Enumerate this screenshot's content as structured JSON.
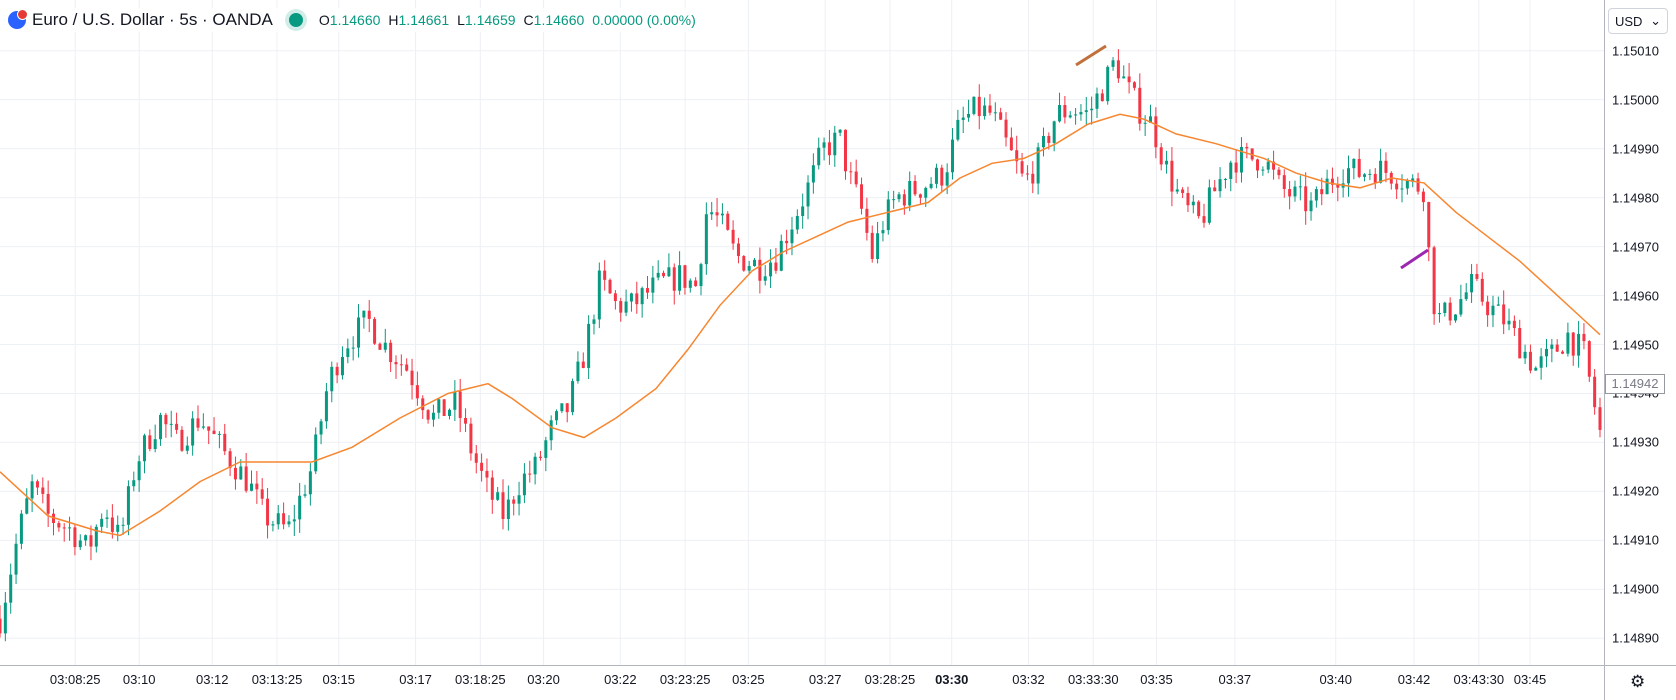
{
  "legend": {
    "symbol": "Euro / U.S. Dollar · 5s · OANDA",
    "open_label": "O",
    "open": "1.14660",
    "high_label": "H",
    "high": "1.14661",
    "low_label": "L",
    "low": "1.14659",
    "close_label": "C",
    "close": "1.14660",
    "change": "0.00000 (0.00%)"
  },
  "currency": {
    "label": "USD",
    "chevron": "⌄"
  },
  "price_tag": "1.14942",
  "settings_icon": "gear-icon",
  "colors": {
    "up": "#089981",
    "down": "#f23645",
    "ma": "#f7862f",
    "grid": "#e9ecf2",
    "annot1": "#c0703a",
    "annot2": "#9c27b0"
  },
  "chart_data": {
    "type": "candlestick",
    "symbol": "EUR/USD",
    "interval": "5s",
    "y_ticks": [
      "1.14890",
      "1.14900",
      "1.14910",
      "1.14920",
      "1.14930",
      "1.14940",
      "1.14950",
      "1.14960",
      "1.14970",
      "1.14980",
      "1.14990",
      "1.15000",
      "1.15010"
    ],
    "ylim": [
      1.14887,
      1.15013
    ],
    "x_ticks": [
      {
        "label": "03:08:25",
        "x": 0.034
      },
      {
        "label": "03:10",
        "x": 0.0765
      },
      {
        "label": "03:12",
        "x": 0.125
      },
      {
        "label": "03:13:25",
        "x": 0.168
      },
      {
        "label": "03:15",
        "x": 0.209
      },
      {
        "label": "03:17",
        "x": 0.26
      },
      {
        "label": "03:18:25",
        "x": 0.303
      },
      {
        "label": "03:20",
        "x": 0.345
      },
      {
        "label": "03:22",
        "x": 0.396
      },
      {
        "label": "03:23:25",
        "x": 0.439
      },
      {
        "label": "03:25",
        "x": 0.481
      },
      {
        "label": "03:27",
        "x": 0.532
      },
      {
        "label": "03:28:25",
        "x": 0.575
      },
      {
        "label": "03:30",
        "x": 0.616,
        "bold": true
      },
      {
        "label": "03:32",
        "x": 0.667
      },
      {
        "label": "03:33:30",
        "x": 0.71
      },
      {
        "label": "03:35",
        "x": 0.752
      },
      {
        "label": "03:37",
        "x": 0.804
      },
      {
        "label": "03:40",
        "x": 0.871
      },
      {
        "label": "03:42",
        "x": 0.923
      },
      {
        "label": "03:43:30",
        "x": 0.966
      },
      {
        "label": "03:45",
        "x": 1.0
      }
    ],
    "x_domain_note": "x positions are fractions across the labelled time span",
    "price_path": [
      [
        0.0,
        1.14894
      ],
      [
        0.012,
        1.14912
      ],
      [
        0.02,
        1.14921
      ],
      [
        0.03,
        1.14915
      ],
      [
        0.045,
        1.14912
      ],
      [
        0.055,
        1.14908
      ],
      [
        0.065,
        1.14917
      ],
      [
        0.075,
        1.1491
      ],
      [
        0.085,
        1.14926
      ],
      [
        0.1,
        1.14935
      ],
      [
        0.11,
        1.1493
      ],
      [
        0.125,
        1.14935
      ],
      [
        0.14,
        1.14928
      ],
      [
        0.155,
        1.14922
      ],
      [
        0.165,
        1.14915
      ],
      [
        0.18,
        1.14912
      ],
      [
        0.195,
        1.14925
      ],
      [
        0.205,
        1.14942
      ],
      [
        0.215,
        1.1495
      ],
      [
        0.23,
        1.14955
      ],
      [
        0.24,
        1.1495
      ],
      [
        0.255,
        1.14945
      ],
      [
        0.27,
        1.14935
      ],
      [
        0.285,
        1.14938
      ],
      [
        0.295,
        1.14928
      ],
      [
        0.305,
        1.1492
      ],
      [
        0.315,
        1.14915
      ],
      [
        0.325,
        1.14922
      ],
      [
        0.335,
        1.14925
      ],
      [
        0.345,
        1.14933
      ],
      [
        0.355,
        1.14937
      ],
      [
        0.365,
        1.14948
      ],
      [
        0.375,
        1.14963
      ],
      [
        0.385,
        1.14958
      ],
      [
        0.395,
        1.14958
      ],
      [
        0.41,
        1.14962
      ],
      [
        0.425,
        1.14964
      ],
      [
        0.435,
        1.14962
      ],
      [
        0.442,
        1.14978
      ],
      [
        0.45,
        1.14975
      ],
      [
        0.46,
        1.14968
      ],
      [
        0.475,
        1.14966
      ],
      [
        0.485,
        1.14968
      ],
      [
        0.495,
        1.14975
      ],
      [
        0.505,
        1.14982
      ],
      [
        0.515,
        1.1499
      ],
      [
        0.525,
        1.14992
      ],
      [
        0.53,
        1.14985
      ],
      [
        0.538,
        1.14978
      ],
      [
        0.545,
        1.14968
      ],
      [
        0.552,
        1.14975
      ],
      [
        0.56,
        1.1498
      ],
      [
        0.575,
        1.14982
      ],
      [
        0.59,
        1.14985
      ],
      [
        0.6,
        1.14995
      ],
      [
        0.61,
        1.14998
      ],
      [
        0.62,
        1.14997
      ],
      [
        0.63,
        1.1499
      ],
      [
        0.64,
        1.14983
      ],
      [
        0.65,
        1.14988
      ],
      [
        0.66,
        1.14997
      ],
      [
        0.67,
        1.14998
      ],
      [
        0.68,
        1.14997
      ],
      [
        0.69,
        1.15003
      ],
      [
        0.697,
        1.15008
      ],
      [
        0.705,
        1.15002
      ],
      [
        0.712,
        1.14998
      ],
      [
        0.72,
        1.14995
      ],
      [
        0.73,
        1.14985
      ],
      [
        0.74,
        1.14978
      ],
      [
        0.75,
        1.14975
      ],
      [
        0.76,
        1.14982
      ],
      [
        0.77,
        1.14988
      ],
      [
        0.78,
        1.14988
      ],
      [
        0.79,
        1.14988
      ],
      [
        0.8,
        1.14982
      ],
      [
        0.81,
        1.1498
      ],
      [
        0.82,
        1.14978
      ],
      [
        0.83,
        1.14983
      ],
      [
        0.84,
        1.14986
      ],
      [
        0.85,
        1.14985
      ],
      [
        0.86,
        1.14986
      ],
      [
        0.87,
        1.14985
      ],
      [
        0.88,
        1.14983
      ],
      [
        0.89,
        1.14982
      ],
      [
        0.895,
        1.1496
      ],
      [
        0.9,
        1.14955
      ],
      [
        0.91,
        1.14958
      ],
      [
        0.92,
        1.14962
      ],
      [
        0.93,
        1.14958
      ],
      [
        0.94,
        1.14955
      ],
      [
        0.95,
        1.1495
      ],
      [
        0.96,
        1.14945
      ],
      [
        0.97,
        1.14948
      ],
      [
        0.98,
        1.14952
      ],
      [
        0.99,
        1.14948
      ],
      [
        0.995,
        1.1494
      ],
      [
        1.0,
        1.14932
      ]
    ],
    "moving_average": [
      [
        0.0,
        1.14924
      ],
      [
        0.03,
        1.14915
      ],
      [
        0.06,
        1.14912
      ],
      [
        0.075,
        1.14911
      ],
      [
        0.1,
        1.14916
      ],
      [
        0.125,
        1.14922
      ],
      [
        0.15,
        1.14926
      ],
      [
        0.165,
        1.14926
      ],
      [
        0.195,
        1.14926
      ],
      [
        0.22,
        1.14929
      ],
      [
        0.25,
        1.14935
      ],
      [
        0.28,
        1.1494
      ],
      [
        0.305,
        1.14942
      ],
      [
        0.32,
        1.14939
      ],
      [
        0.345,
        1.14933
      ],
      [
        0.365,
        1.14931
      ],
      [
        0.385,
        1.14935
      ],
      [
        0.41,
        1.14941
      ],
      [
        0.43,
        1.14949
      ],
      [
        0.45,
        1.14958
      ],
      [
        0.47,
        1.14965
      ],
      [
        0.49,
        1.14969
      ],
      [
        0.51,
        1.14972
      ],
      [
        0.53,
        1.14975
      ],
      [
        0.555,
        1.14977
      ],
      [
        0.58,
        1.14979
      ],
      [
        0.6,
        1.14984
      ],
      [
        0.62,
        1.14987
      ],
      [
        0.64,
        1.14988
      ],
      [
        0.66,
        1.14991
      ],
      [
        0.68,
        1.14995
      ],
      [
        0.7,
        1.14997
      ],
      [
        0.715,
        1.14996
      ],
      [
        0.735,
        1.14993
      ],
      [
        0.76,
        1.14991
      ],
      [
        0.79,
        1.14988
      ],
      [
        0.81,
        1.14985
      ],
      [
        0.83,
        1.14983
      ],
      [
        0.85,
        1.14982
      ],
      [
        0.87,
        1.14984
      ],
      [
        0.89,
        1.14983
      ],
      [
        0.91,
        1.14977
      ],
      [
        0.93,
        1.14972
      ],
      [
        0.95,
        1.14967
      ],
      [
        0.97,
        1.14961
      ],
      [
        0.99,
        1.14955
      ],
      [
        1.0,
        1.14952
      ]
    ],
    "ma_color": "#f7862f",
    "up_color": "#089981",
    "down_color": "#f23645"
  }
}
